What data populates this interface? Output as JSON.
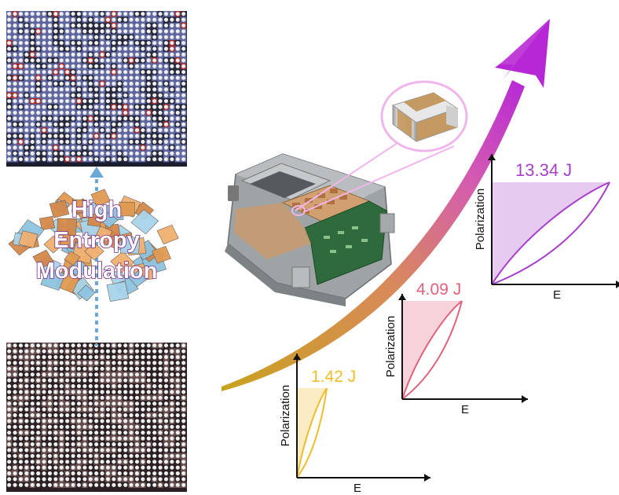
{
  "modulation": {
    "line1": "High",
    "line2": "Entropy",
    "line3": "Modulation"
  },
  "colors": {
    "yellow": "#f0bc2a",
    "pink": "#e0627c",
    "purple": "#a640c8",
    "arrow_start": "#c9a21e",
    "arrow_end": "#c030d8",
    "lattice_blue": "#6f78b8",
    "lattice_red": "#c03030",
    "lattice_pink": "#d9a8a4"
  },
  "loops": [
    {
      "id": "small",
      "energy_label": "1.42 J",
      "energy_value": 1.42,
      "ylabel": "Polarization",
      "xlabel": "E",
      "color": "#f0bc2a"
    },
    {
      "id": "medium",
      "energy_label": "4.09 J",
      "energy_value": 4.09,
      "ylabel": "Polarization",
      "xlabel": "E",
      "color": "#e0627c"
    },
    {
      "id": "large",
      "energy_label": "13.34 J",
      "energy_value": 13.34,
      "ylabel": "Polarization",
      "xlabel": "E",
      "color": "#a640c8"
    }
  ],
  "icons": [
    "lattice-disordered-icon",
    "lattice-ordered-icon",
    "polyhedra-cluster-icon",
    "inverter-module-icon",
    "capacitor-chip-icon",
    "growth-arrow-icon"
  ]
}
